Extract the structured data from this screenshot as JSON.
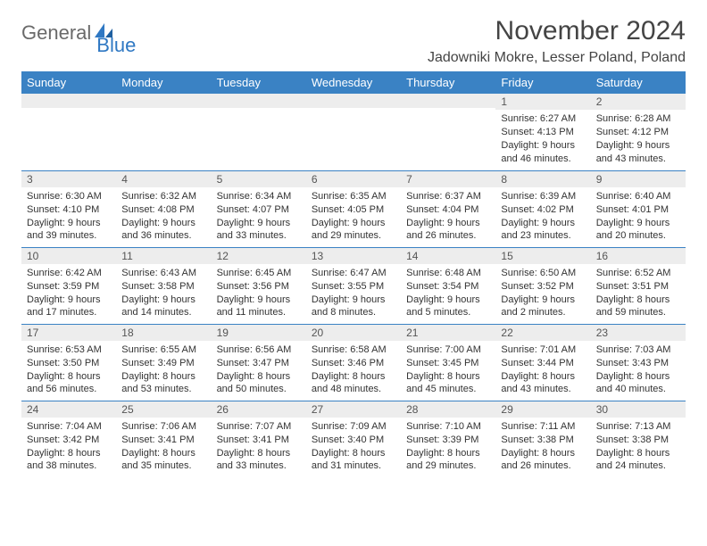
{
  "logo": {
    "text1": "General",
    "text2": "Blue"
  },
  "title": "November 2024",
  "location": "Jadowniki Mokre, Lesser Poland, Poland",
  "colors": {
    "header_bg": "#3a82c4",
    "header_text": "#ffffff",
    "daynum_bg": "#ededed",
    "border": "#3a82c4",
    "logo_gray": "#6a6a6a",
    "logo_blue": "#2f78c3"
  },
  "weekdays": [
    "Sunday",
    "Monday",
    "Tuesday",
    "Wednesday",
    "Thursday",
    "Friday",
    "Saturday"
  ],
  "weeks": [
    [
      {
        "n": "",
        "sr": "",
        "ss": "",
        "dl1": "",
        "dl2": ""
      },
      {
        "n": "",
        "sr": "",
        "ss": "",
        "dl1": "",
        "dl2": ""
      },
      {
        "n": "",
        "sr": "",
        "ss": "",
        "dl1": "",
        "dl2": ""
      },
      {
        "n": "",
        "sr": "",
        "ss": "",
        "dl1": "",
        "dl2": ""
      },
      {
        "n": "",
        "sr": "",
        "ss": "",
        "dl1": "",
        "dl2": ""
      },
      {
        "n": "1",
        "sr": "Sunrise: 6:27 AM",
        "ss": "Sunset: 4:13 PM",
        "dl1": "Daylight: 9 hours",
        "dl2": "and 46 minutes."
      },
      {
        "n": "2",
        "sr": "Sunrise: 6:28 AM",
        "ss": "Sunset: 4:12 PM",
        "dl1": "Daylight: 9 hours",
        "dl2": "and 43 minutes."
      }
    ],
    [
      {
        "n": "3",
        "sr": "Sunrise: 6:30 AM",
        "ss": "Sunset: 4:10 PM",
        "dl1": "Daylight: 9 hours",
        "dl2": "and 39 minutes."
      },
      {
        "n": "4",
        "sr": "Sunrise: 6:32 AM",
        "ss": "Sunset: 4:08 PM",
        "dl1": "Daylight: 9 hours",
        "dl2": "and 36 minutes."
      },
      {
        "n": "5",
        "sr": "Sunrise: 6:34 AM",
        "ss": "Sunset: 4:07 PM",
        "dl1": "Daylight: 9 hours",
        "dl2": "and 33 minutes."
      },
      {
        "n": "6",
        "sr": "Sunrise: 6:35 AM",
        "ss": "Sunset: 4:05 PM",
        "dl1": "Daylight: 9 hours",
        "dl2": "and 29 minutes."
      },
      {
        "n": "7",
        "sr": "Sunrise: 6:37 AM",
        "ss": "Sunset: 4:04 PM",
        "dl1": "Daylight: 9 hours",
        "dl2": "and 26 minutes."
      },
      {
        "n": "8",
        "sr": "Sunrise: 6:39 AM",
        "ss": "Sunset: 4:02 PM",
        "dl1": "Daylight: 9 hours",
        "dl2": "and 23 minutes."
      },
      {
        "n": "9",
        "sr": "Sunrise: 6:40 AM",
        "ss": "Sunset: 4:01 PM",
        "dl1": "Daylight: 9 hours",
        "dl2": "and 20 minutes."
      }
    ],
    [
      {
        "n": "10",
        "sr": "Sunrise: 6:42 AM",
        "ss": "Sunset: 3:59 PM",
        "dl1": "Daylight: 9 hours",
        "dl2": "and 17 minutes."
      },
      {
        "n": "11",
        "sr": "Sunrise: 6:43 AM",
        "ss": "Sunset: 3:58 PM",
        "dl1": "Daylight: 9 hours",
        "dl2": "and 14 minutes."
      },
      {
        "n": "12",
        "sr": "Sunrise: 6:45 AM",
        "ss": "Sunset: 3:56 PM",
        "dl1": "Daylight: 9 hours",
        "dl2": "and 11 minutes."
      },
      {
        "n": "13",
        "sr": "Sunrise: 6:47 AM",
        "ss": "Sunset: 3:55 PM",
        "dl1": "Daylight: 9 hours",
        "dl2": "and 8 minutes."
      },
      {
        "n": "14",
        "sr": "Sunrise: 6:48 AM",
        "ss": "Sunset: 3:54 PM",
        "dl1": "Daylight: 9 hours",
        "dl2": "and 5 minutes."
      },
      {
        "n": "15",
        "sr": "Sunrise: 6:50 AM",
        "ss": "Sunset: 3:52 PM",
        "dl1": "Daylight: 9 hours",
        "dl2": "and 2 minutes."
      },
      {
        "n": "16",
        "sr": "Sunrise: 6:52 AM",
        "ss": "Sunset: 3:51 PM",
        "dl1": "Daylight: 8 hours",
        "dl2": "and 59 minutes."
      }
    ],
    [
      {
        "n": "17",
        "sr": "Sunrise: 6:53 AM",
        "ss": "Sunset: 3:50 PM",
        "dl1": "Daylight: 8 hours",
        "dl2": "and 56 minutes."
      },
      {
        "n": "18",
        "sr": "Sunrise: 6:55 AM",
        "ss": "Sunset: 3:49 PM",
        "dl1": "Daylight: 8 hours",
        "dl2": "and 53 minutes."
      },
      {
        "n": "19",
        "sr": "Sunrise: 6:56 AM",
        "ss": "Sunset: 3:47 PM",
        "dl1": "Daylight: 8 hours",
        "dl2": "and 50 minutes."
      },
      {
        "n": "20",
        "sr": "Sunrise: 6:58 AM",
        "ss": "Sunset: 3:46 PM",
        "dl1": "Daylight: 8 hours",
        "dl2": "and 48 minutes."
      },
      {
        "n": "21",
        "sr": "Sunrise: 7:00 AM",
        "ss": "Sunset: 3:45 PM",
        "dl1": "Daylight: 8 hours",
        "dl2": "and 45 minutes."
      },
      {
        "n": "22",
        "sr": "Sunrise: 7:01 AM",
        "ss": "Sunset: 3:44 PM",
        "dl1": "Daylight: 8 hours",
        "dl2": "and 43 minutes."
      },
      {
        "n": "23",
        "sr": "Sunrise: 7:03 AM",
        "ss": "Sunset: 3:43 PM",
        "dl1": "Daylight: 8 hours",
        "dl2": "and 40 minutes."
      }
    ],
    [
      {
        "n": "24",
        "sr": "Sunrise: 7:04 AM",
        "ss": "Sunset: 3:42 PM",
        "dl1": "Daylight: 8 hours",
        "dl2": "and 38 minutes."
      },
      {
        "n": "25",
        "sr": "Sunrise: 7:06 AM",
        "ss": "Sunset: 3:41 PM",
        "dl1": "Daylight: 8 hours",
        "dl2": "and 35 minutes."
      },
      {
        "n": "26",
        "sr": "Sunrise: 7:07 AM",
        "ss": "Sunset: 3:41 PM",
        "dl1": "Daylight: 8 hours",
        "dl2": "and 33 minutes."
      },
      {
        "n": "27",
        "sr": "Sunrise: 7:09 AM",
        "ss": "Sunset: 3:40 PM",
        "dl1": "Daylight: 8 hours",
        "dl2": "and 31 minutes."
      },
      {
        "n": "28",
        "sr": "Sunrise: 7:10 AM",
        "ss": "Sunset: 3:39 PM",
        "dl1": "Daylight: 8 hours",
        "dl2": "and 29 minutes."
      },
      {
        "n": "29",
        "sr": "Sunrise: 7:11 AM",
        "ss": "Sunset: 3:38 PM",
        "dl1": "Daylight: 8 hours",
        "dl2": "and 26 minutes."
      },
      {
        "n": "30",
        "sr": "Sunrise: 7:13 AM",
        "ss": "Sunset: 3:38 PM",
        "dl1": "Daylight: 8 hours",
        "dl2": "and 24 minutes."
      }
    ]
  ]
}
